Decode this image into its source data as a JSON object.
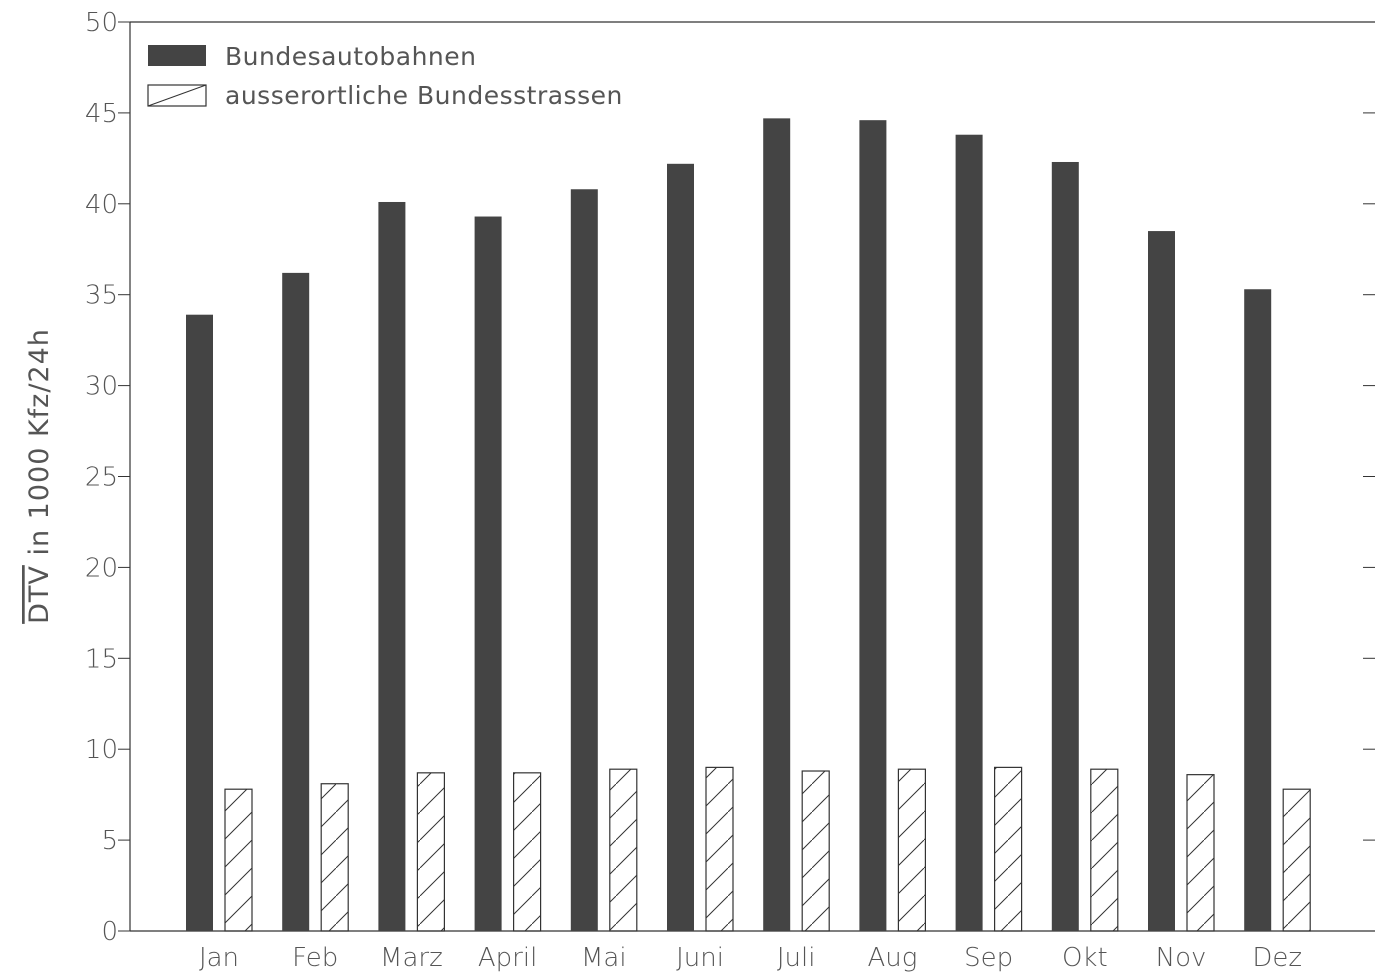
{
  "chart_data": {
    "type": "bar",
    "title": "",
    "xlabel": "",
    "ylabel": "DTV in 1000 Kfz/24h",
    "ylabel_overline_part": "DTV",
    "ylabel_rest": " in 1000 Kfz/24h",
    "ylim": [
      0,
      50
    ],
    "yticks": [
      0,
      5,
      10,
      15,
      20,
      25,
      30,
      35,
      40,
      45,
      50
    ],
    "categories": [
      "Jan",
      "Feb",
      "Marz",
      "April",
      "Mai",
      "Juni",
      "Juli",
      "Aug",
      "Sep",
      "Okt",
      "Nov",
      "Dez"
    ],
    "legend_position": "top-left",
    "grid": false,
    "series": [
      {
        "name": "Bundesautobahnen",
        "fill": "solid",
        "color": "#444444",
        "values": [
          33.9,
          36.2,
          40.1,
          39.3,
          40.8,
          42.2,
          44.7,
          44.6,
          43.8,
          42.3,
          38.5,
          35.3
        ]
      },
      {
        "name": "ausserortliche Bundesstrassen",
        "fill": "hatched",
        "color": "#333333",
        "values": [
          7.8,
          8.1,
          8.7,
          8.7,
          8.9,
          9.0,
          8.8,
          8.9,
          9.0,
          8.9,
          8.6,
          7.8
        ]
      }
    ]
  }
}
